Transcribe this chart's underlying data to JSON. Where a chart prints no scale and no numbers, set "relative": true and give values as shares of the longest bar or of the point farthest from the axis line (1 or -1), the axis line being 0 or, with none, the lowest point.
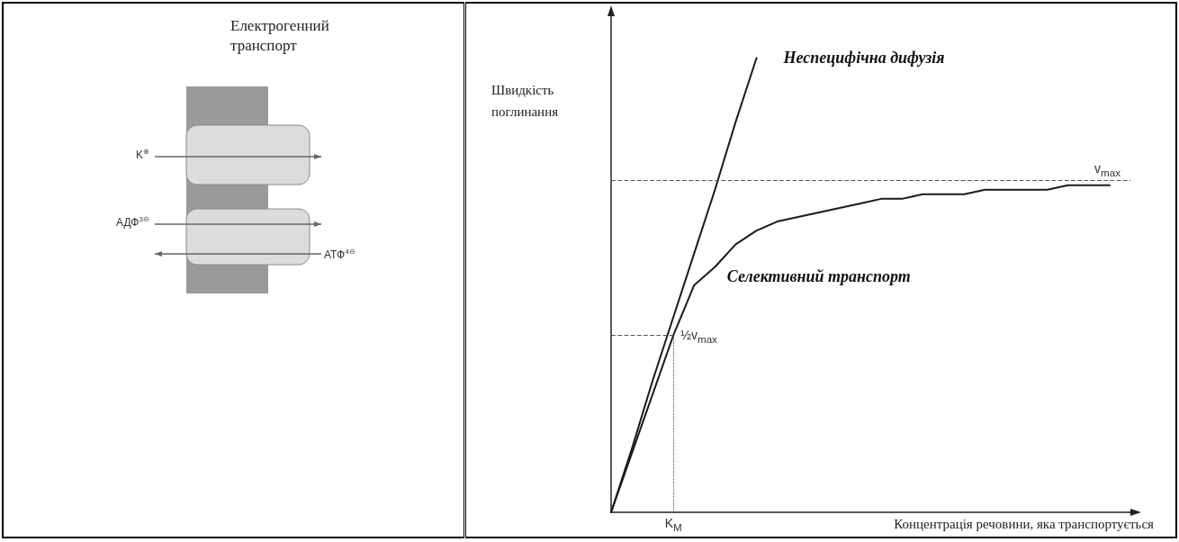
{
  "chart_data": [
    {
      "type": "other",
      "title": "Електрогенний транспорт",
      "annotations": [
        "K$^{⊕}$",
        "АДФ$^{3⊖}$",
        "АТФ$^{4⊖}$"
      ]
    },
    {
      "type": "line",
      "relative": true,
      "xlabel": "Концентрація речовини, яка транспортується",
      "ylabel": "Швидкість поглинання",
      "marker": "none",
      "line_style": "solid",
      "categories": [
        null,
        null,
        null,
        null,
        null,
        null,
        null,
        null,
        null,
        null,
        null,
        null,
        null,
        null,
        null,
        null,
        null,
        null,
        null,
        null,
        null,
        null,
        null,
        null,
        null,
        null
      ],
      "series": [
        {
          "name": "Неспецифічна дифузія",
          "color": "#1a1a1a",
          "values": [
            0,
            0.14,
            0.29,
            0.43,
            0.57,
            0.71,
            0.86,
            1,
            null,
            null,
            null,
            null,
            null,
            null,
            null,
            null,
            null,
            null,
            null,
            null,
            null,
            null,
            null,
            null,
            null,
            null
          ]
        },
        {
          "name": "Селективний транспорт",
          "color": "#1a1a1a",
          "values": [
            0,
            0.13,
            0.26,
            0.39,
            0.5,
            0.54,
            0.59,
            0.62,
            0.64,
            0.65,
            0.66,
            0.67,
            0.68,
            0.69,
            0.69,
            0.7,
            0.7,
            0.7,
            0.71,
            0.71,
            0.71,
            0.71,
            0.72,
            0.72,
            0.72,
            null
          ]
        }
      ],
      "ref_lines": [
        {
          "axis": "y",
          "value": 0.73,
          "label": "v$_{max}$",
          "color": "#555555",
          "line_style": "dashed"
        },
        {
          "axis": "y",
          "value": 0.39,
          "label": "½v$_{max}$",
          "color": "#555555",
          "line_style": "dashed"
        }
      ],
      "annotations": [
        "K$_{M}$"
      ]
    }
  ]
}
